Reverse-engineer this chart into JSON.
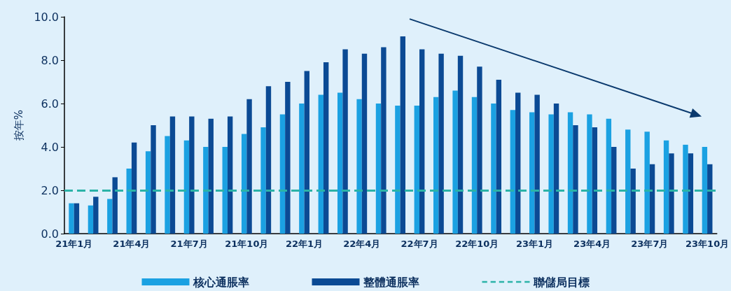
{
  "chart_data": {
    "type": "bar",
    "ylabel": "按年%",
    "categories": [
      "21年1月",
      null,
      null,
      "21年4月",
      null,
      null,
      "21年7月",
      null,
      null,
      "21年10月",
      null,
      null,
      "22年1月",
      null,
      null,
      "22年4月",
      null,
      null,
      "22年7月",
      null,
      null,
      "22年10月",
      null,
      null,
      "23年1月",
      null,
      null,
      "23年4月",
      null,
      null,
      "23年7月",
      null,
      null,
      "23年10月"
    ],
    "series": [
      {
        "name": "核心通脹率",
        "color": "#1ba1e2",
        "values": [
          1.4,
          1.3,
          1.6,
          3.0,
          3.8,
          4.5,
          4.3,
          4.0,
          4.0,
          4.6,
          4.9,
          5.5,
          6.0,
          6.4,
          6.5,
          6.2,
          6.0,
          5.9,
          5.9,
          6.3,
          6.6,
          6.3,
          6.0,
          5.7,
          5.6,
          5.5,
          5.6,
          5.5,
          5.3,
          4.8,
          4.7,
          4.3,
          4.1,
          4.0
        ]
      },
      {
        "name": "整體通脹率",
        "color": "#0b4a94",
        "values": [
          1.4,
          1.7,
          2.6,
          4.2,
          5.0,
          5.4,
          5.4,
          5.3,
          5.4,
          6.2,
          6.8,
          7.0,
          7.5,
          7.9,
          8.5,
          8.3,
          8.6,
          9.1,
          8.5,
          8.3,
          8.2,
          7.7,
          7.1,
          6.5,
          6.4,
          6.0,
          5.0,
          4.9,
          4.0,
          3.0,
          3.2,
          3.7,
          3.7,
          3.2
        ]
      }
    ],
    "ref_lines": [
      {
        "axis": "y",
        "value": 2.0,
        "label": "聯儲局目標",
        "color": "#2bb3a8",
        "line_style": "dashed"
      }
    ],
    "ylim": [
      0,
      10
    ],
    "yticks": [
      {
        "value": 0,
        "label": "0.0"
      },
      {
        "value": 2,
        "label": "2.0"
      },
      {
        "value": 4,
        "label": "4.0"
      },
      {
        "value": 6,
        "label": "6.0"
      },
      {
        "value": 8,
        "label": "8.0"
      },
      {
        "value": 10,
        "label": "10.0"
      }
    ],
    "grid": false,
    "legend": "bottom"
  }
}
